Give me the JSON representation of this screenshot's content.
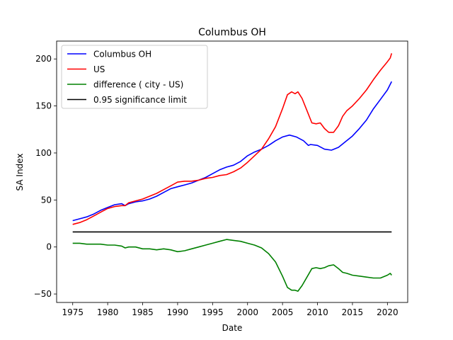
{
  "chart_data": {
    "type": "line",
    "title": "Columbus OH",
    "xlabel": "Date",
    "ylabel": "SA Index",
    "xlim": [
      1972.7,
      2022.9
    ],
    "ylim": [
      -59,
      219
    ],
    "xticks": [
      1975,
      1980,
      1985,
      1990,
      1995,
      2000,
      2005,
      2010,
      2015,
      2020
    ],
    "yticks": [
      -50,
      0,
      50,
      100,
      150,
      200
    ],
    "grid": false,
    "legend_position": "top-left",
    "series": [
      {
        "name": "Columbus OH",
        "color": "#0000ff",
        "points": [
          [
            1975,
            28
          ],
          [
            1976,
            30
          ],
          [
            1977,
            32
          ],
          [
            1978,
            35
          ],
          [
            1979,
            39
          ],
          [
            1980,
            42
          ],
          [
            1981,
            45
          ],
          [
            1982,
            46
          ],
          [
            1982.5,
            44
          ],
          [
            1983,
            46
          ],
          [
            1984,
            48
          ],
          [
            1985,
            49
          ],
          [
            1986,
            51
          ],
          [
            1987,
            54
          ],
          [
            1988,
            58
          ],
          [
            1989,
            62
          ],
          [
            1990,
            64
          ],
          [
            1991,
            66
          ],
          [
            1992,
            68
          ],
          [
            1993,
            71
          ],
          [
            1994,
            74
          ],
          [
            1995,
            78
          ],
          [
            1996,
            82
          ],
          [
            1997,
            85
          ],
          [
            1998,
            87
          ],
          [
            1999,
            91
          ],
          [
            2000,
            97
          ],
          [
            2001,
            101
          ],
          [
            2002,
            104
          ],
          [
            2003,
            108
          ],
          [
            2004,
            113
          ],
          [
            2005,
            117
          ],
          [
            2006,
            119
          ],
          [
            2007,
            117
          ],
          [
            2008,
            113
          ],
          [
            2008.7,
            108
          ],
          [
            2009,
            109
          ],
          [
            2010,
            108
          ],
          [
            2011,
            104
          ],
          [
            2012,
            103
          ],
          [
            2013,
            106
          ],
          [
            2014,
            112
          ],
          [
            2015,
            118
          ],
          [
            2016,
            126
          ],
          [
            2017,
            135
          ],
          [
            2018,
            147
          ],
          [
            2019,
            157
          ],
          [
            2020,
            167
          ],
          [
            2020.6,
            176
          ]
        ]
      },
      {
        "name": "US",
        "color": "#ff0000",
        "points": [
          [
            1975,
            24
          ],
          [
            1976,
            26
          ],
          [
            1977,
            29
          ],
          [
            1978,
            33
          ],
          [
            1979,
            37
          ],
          [
            1980,
            41
          ],
          [
            1981,
            43
          ],
          [
            1982,
            44
          ],
          [
            1982.5,
            44
          ],
          [
            1983,
            47
          ],
          [
            1984,
            49
          ],
          [
            1985,
            51
          ],
          [
            1986,
            54
          ],
          [
            1987,
            57
          ],
          [
            1988,
            61
          ],
          [
            1989,
            65
          ],
          [
            1990,
            69
          ],
          [
            1991,
            70
          ],
          [
            1992,
            70
          ],
          [
            1993,
            71
          ],
          [
            1994,
            73
          ],
          [
            1995,
            74
          ],
          [
            1996,
            76
          ],
          [
            1997,
            77
          ],
          [
            1998,
            80
          ],
          [
            1999,
            84
          ],
          [
            2000,
            90
          ],
          [
            2001,
            97
          ],
          [
            2002,
            104
          ],
          [
            2003,
            115
          ],
          [
            2004,
            128
          ],
          [
            2005,
            147
          ],
          [
            2005.7,
            162
          ],
          [
            2006.3,
            165
          ],
          [
            2006.8,
            163
          ],
          [
            2007.2,
            165
          ],
          [
            2007.8,
            158
          ],
          [
            2008.5,
            145
          ],
          [
            2009.2,
            132
          ],
          [
            2009.8,
            131
          ],
          [
            2010.4,
            132
          ],
          [
            2011,
            126
          ],
          [
            2011.6,
            122
          ],
          [
            2012.3,
            122
          ],
          [
            2013,
            129
          ],
          [
            2013.6,
            139
          ],
          [
            2014.2,
            145
          ],
          [
            2015,
            150
          ],
          [
            2016,
            158
          ],
          [
            2017,
            167
          ],
          [
            2018,
            178
          ],
          [
            2019,
            188
          ],
          [
            2020,
            197
          ],
          [
            2020.4,
            201
          ],
          [
            2020.6,
            206
          ]
        ]
      },
      {
        "name": "difference ( city - US)",
        "color": "#008000",
        "points": [
          [
            1975,
            4
          ],
          [
            1976,
            4
          ],
          [
            1977,
            3
          ],
          [
            1978,
            3
          ],
          [
            1979,
            3
          ],
          [
            1980,
            2
          ],
          [
            1981,
            2
          ],
          [
            1982,
            1
          ],
          [
            1982.5,
            -1
          ],
          [
            1983,
            0
          ],
          [
            1984,
            0
          ],
          [
            1985,
            -2
          ],
          [
            1986,
            -2
          ],
          [
            1987,
            -3
          ],
          [
            1988,
            -2
          ],
          [
            1989,
            -3
          ],
          [
            1990,
            -5
          ],
          [
            1991,
            -4
          ],
          [
            1992,
            -2
          ],
          [
            1993,
            0
          ],
          [
            1994,
            2
          ],
          [
            1995,
            4
          ],
          [
            1996,
            6
          ],
          [
            1997,
            8
          ],
          [
            1998,
            7
          ],
          [
            1999,
            6
          ],
          [
            2000,
            4
          ],
          [
            2001,
            2
          ],
          [
            2002,
            -1
          ],
          [
            2003,
            -7
          ],
          [
            2004,
            -16
          ],
          [
            2005,
            -31
          ],
          [
            2005.7,
            -43
          ],
          [
            2006.3,
            -46
          ],
          [
            2006.8,
            -46
          ],
          [
            2007.2,
            -47
          ],
          [
            2007.8,
            -41
          ],
          [
            2008.5,
            -32
          ],
          [
            2009.2,
            -23
          ],
          [
            2009.8,
            -22
          ],
          [
            2010.4,
            -23
          ],
          [
            2011,
            -22
          ],
          [
            2011.6,
            -20
          ],
          [
            2012.3,
            -19
          ],
          [
            2013,
            -23
          ],
          [
            2013.6,
            -27
          ],
          [
            2014.2,
            -28
          ],
          [
            2015,
            -30
          ],
          [
            2016,
            -31
          ],
          [
            2017,
            -32
          ],
          [
            2018,
            -33
          ],
          [
            2019,
            -33
          ],
          [
            2020,
            -30
          ],
          [
            2020.4,
            -28
          ],
          [
            2020.6,
            -30
          ]
        ]
      },
      {
        "name": "0.95 significance limit",
        "color": "#000000",
        "points": [
          [
            1975,
            16
          ],
          [
            2020.6,
            16
          ]
        ]
      }
    ]
  }
}
